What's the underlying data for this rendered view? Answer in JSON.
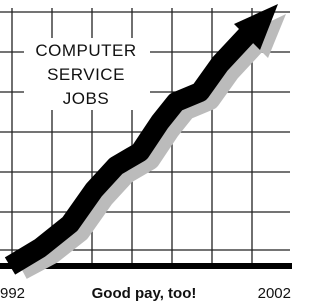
{
  "label": {
    "lines": [
      "COMPUTER",
      "SERVICE",
      "JOBS"
    ]
  },
  "footer": {
    "start": "992",
    "caption": "Good pay, too!",
    "end": "2002"
  }
}
